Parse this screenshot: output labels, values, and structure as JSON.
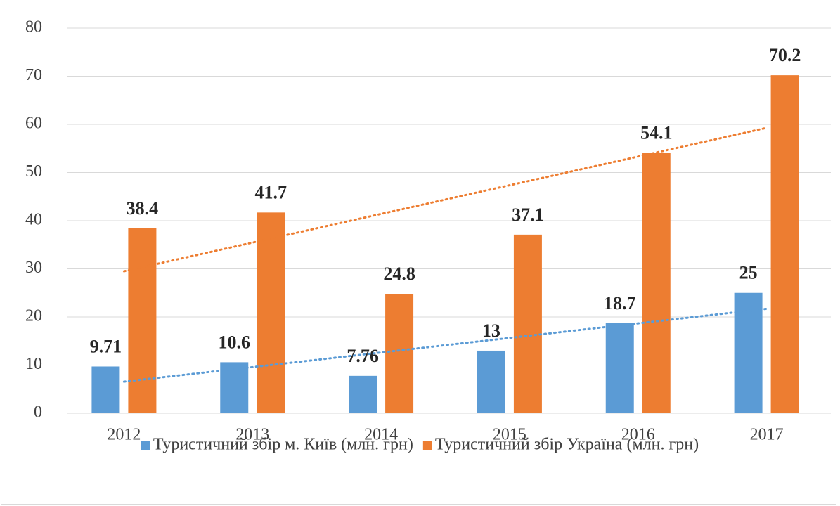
{
  "chart_data": {
    "type": "bar",
    "categories": [
      "2012",
      "2013",
      "2014",
      "2015",
      "2016",
      "2017"
    ],
    "series": [
      {
        "name": "Туристичний збір м. Київ (млн. грн)",
        "color": "#5b9bd5",
        "values": [
          9.71,
          10.6,
          7.76,
          13,
          18.7,
          25
        ],
        "trendline": "linear"
      },
      {
        "name": "Туристичний збір Україна (млн. грн)",
        "color": "#ed7d31",
        "values": [
          38.4,
          41.7,
          24.8,
          37.1,
          54.1,
          70.2
        ],
        "trendline": "linear"
      }
    ],
    "ylim": [
      0,
      80
    ],
    "yticks": [
      0,
      10,
      20,
      30,
      40,
      50,
      60,
      70,
      80
    ],
    "grid": true,
    "legend": "bottom"
  }
}
